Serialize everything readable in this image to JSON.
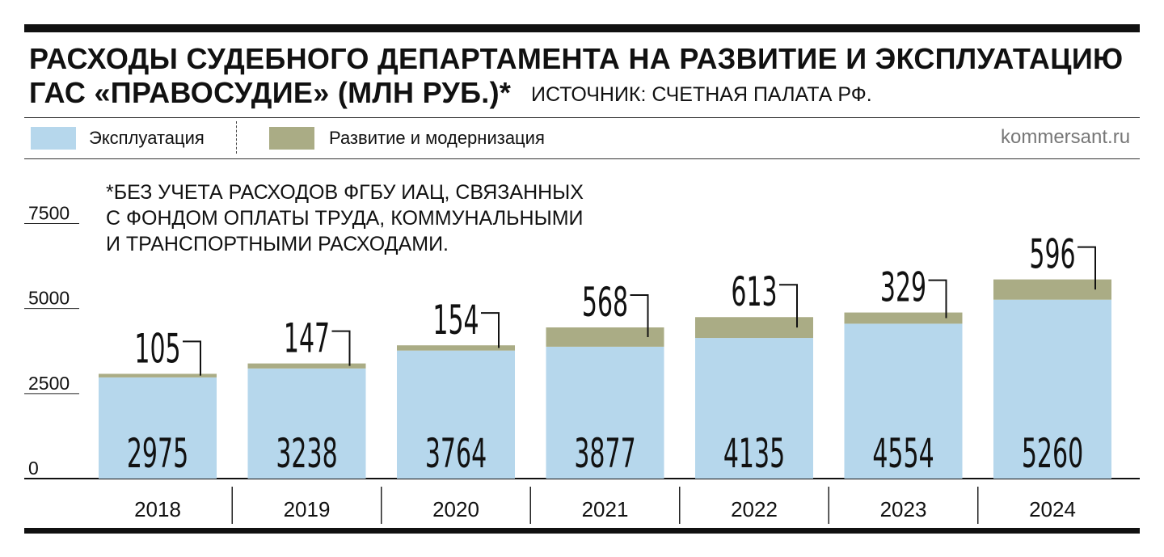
{
  "title_line1": "РАСХОДЫ СУДЕБНОГО ДЕПАРТАМЕНТА НА РАЗВИТИЕ И ЭКСПЛУАТАЦИЮ",
  "title_line2": "ГАС «ПРАВОСУДИЕ» (МЛН РУБ.)*",
  "source": "ИСТОЧНИК: СЧЕТНАЯ ПАЛАТА РФ.",
  "site": "kommersant.ru",
  "footnote_lines": [
    "*БЕЗ УЧЕТА РАСХОДОВ ФГБУ ИАЦ, СВЯЗАННЫХ",
    "С ФОНДОМ ОПЛАТЫ ТРУДА, КОММУНАЛЬНЫМИ",
    "И ТРАНСПОРТНЫМИ РАСХОДАМИ."
  ],
  "colors": {
    "exploitation": "#b6d7ec",
    "development": "#aaac85",
    "text": "#111111",
    "muted": "#777777"
  },
  "chart_data": {
    "type": "bar",
    "stacked": true,
    "categories": [
      "2018",
      "2019",
      "2020",
      "2021",
      "2022",
      "2023",
      "2024"
    ],
    "series": [
      {
        "name": "Эксплуатация",
        "values": [
          2975,
          3238,
          3764,
          3877,
          4135,
          4554,
          5260
        ]
      },
      {
        "name": "Развитие и модернизация",
        "values": [
          105,
          147,
          154,
          568,
          613,
          329,
          596
        ]
      }
    ],
    "ylim": [
      0,
      7500
    ],
    "yticks": [
      0,
      2500,
      5000,
      7500
    ],
    "legend_position": "top-left",
    "title": "РАСХОДЫ СУДЕБНОГО ДЕПАРТАМЕНТА НА РАЗВИТИЕ И ЭКСПЛУАТАЦИЮ ГАС «ПРАВОСУДИЕ» (МЛН РУБ.)*"
  }
}
